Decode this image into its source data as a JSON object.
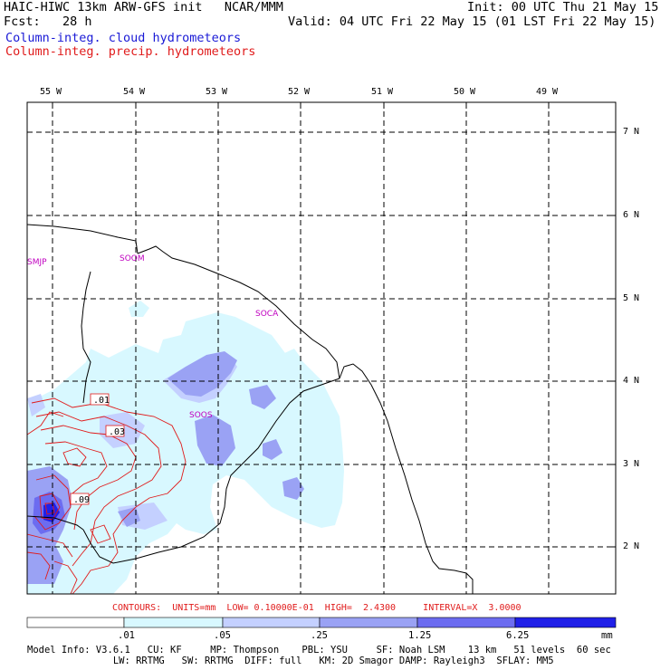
{
  "header": {
    "line1_left": "HAIC-HIWC 13km ARW-GFS init   NCAR/MMM",
    "line1_right": "Init: 00 UTC Thu 21 May 15",
    "line2_left": "Fcst:   28 h",
    "line2_right": "Valid: 04 UTC Fri 22 May 15 (01 LST Fri 22 May 15)",
    "field1": "Column-integ. cloud hydrometeors",
    "field2": "Column-integ. precip. hydrometeors"
  },
  "colors": {
    "cloud_label": "#1a1ad6",
    "precip_label": "#e01b1b",
    "shade_1": "#d8f8ff",
    "shade_2": "#c4d0ff",
    "shade_3": "#9aa2f4",
    "shade_4": "#6c6cf0",
    "shade_5": "#2020e8"
  },
  "axes": {
    "lon_labels": [
      "55 W",
      "54 W",
      "53 W",
      "52 W",
      "51 W",
      "50 W",
      "49 W"
    ],
    "lat_labels": [
      "7 N",
      "6 N",
      "5 N",
      "4 N",
      "3 N",
      "2 N"
    ]
  },
  "stations": [
    "SMJP",
    "SOOM",
    "SOCA",
    "SOOS"
  ],
  "contour_labels": [
    ".01",
    ".03",
    ".09"
  ],
  "contour_info": "CONTOURS:  UNITS=mm  LOW= 0.10000E-01  HIGH=  2.4300     INTERVAL=X  3.0000",
  "colorbar": {
    "labels": [
      ".01",
      ".05",
      ".25",
      "1.25",
      "6.25"
    ],
    "units": "mm"
  },
  "footer": {
    "line1": "Model Info: V3.6.1   CU: KF     MP: Thompson    PBL: YSU     SF: Noah LSM    13 km   51 levels  60 sec",
    "line2": "               LW: RRTMG   SW: RRTMG  DIFF: full   KM: 2D Smagor DAMP: Rayleigh3  SFLAY: MM5"
  }
}
